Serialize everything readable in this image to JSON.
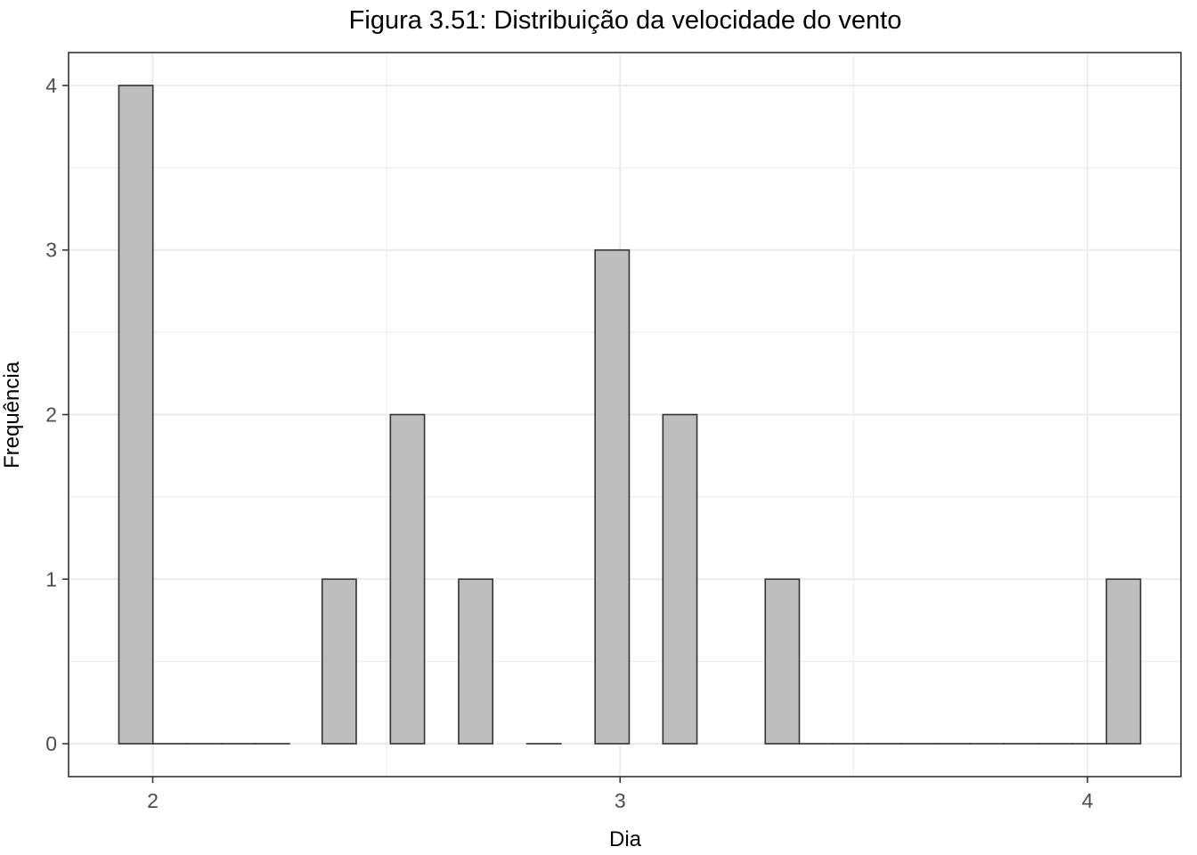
{
  "chart_data": {
    "type": "bar",
    "title": "Figura 3.51: Distribuição da velocidade do vento",
    "xlabel": "Dia",
    "ylabel": "Frequência",
    "bin_width": 0.0729,
    "bins": [
      {
        "x": 1.964,
        "count": 4
      },
      {
        "x": 2.037,
        "count": 0
      },
      {
        "x": 2.11,
        "count": 0
      },
      {
        "x": 2.183,
        "count": 0
      },
      {
        "x": 2.256,
        "count": 0
      },
      {
        "x": 2.399,
        "count": 1
      },
      {
        "x": 2.545,
        "count": 2
      },
      {
        "x": 2.691,
        "count": 1
      },
      {
        "x": 2.837,
        "count": 0
      },
      {
        "x": 2.983,
        "count": 3
      },
      {
        "x": 3.128,
        "count": 2
      },
      {
        "x": 3.347,
        "count": 1
      },
      {
        "x": 3.42,
        "count": 0
      },
      {
        "x": 3.493,
        "count": 0
      },
      {
        "x": 3.566,
        "count": 0
      },
      {
        "x": 3.639,
        "count": 0
      },
      {
        "x": 3.712,
        "count": 0
      },
      {
        "x": 3.785,
        "count": 0
      },
      {
        "x": 3.858,
        "count": 0
      },
      {
        "x": 3.931,
        "count": 0
      },
      {
        "x": 4.004,
        "count": 0
      },
      {
        "x": 4.077,
        "count": 1
      }
    ],
    "xlim": [
      1.82,
      4.2
    ],
    "ylim": [
      -0.2,
      4.2
    ],
    "x_ticks": [
      2,
      3,
      4
    ],
    "x_tick_labels": [
      "2",
      "3",
      "4"
    ],
    "y_ticks": [
      0,
      1,
      2,
      3,
      4
    ],
    "y_tick_labels": [
      "0",
      "1",
      "2",
      "3",
      "4"
    ],
    "grid": true,
    "colors": {
      "bar_fill": "#bebebe",
      "bar_stroke": "#333333",
      "grid": "#ebebeb",
      "panel_border": "#333333"
    }
  }
}
